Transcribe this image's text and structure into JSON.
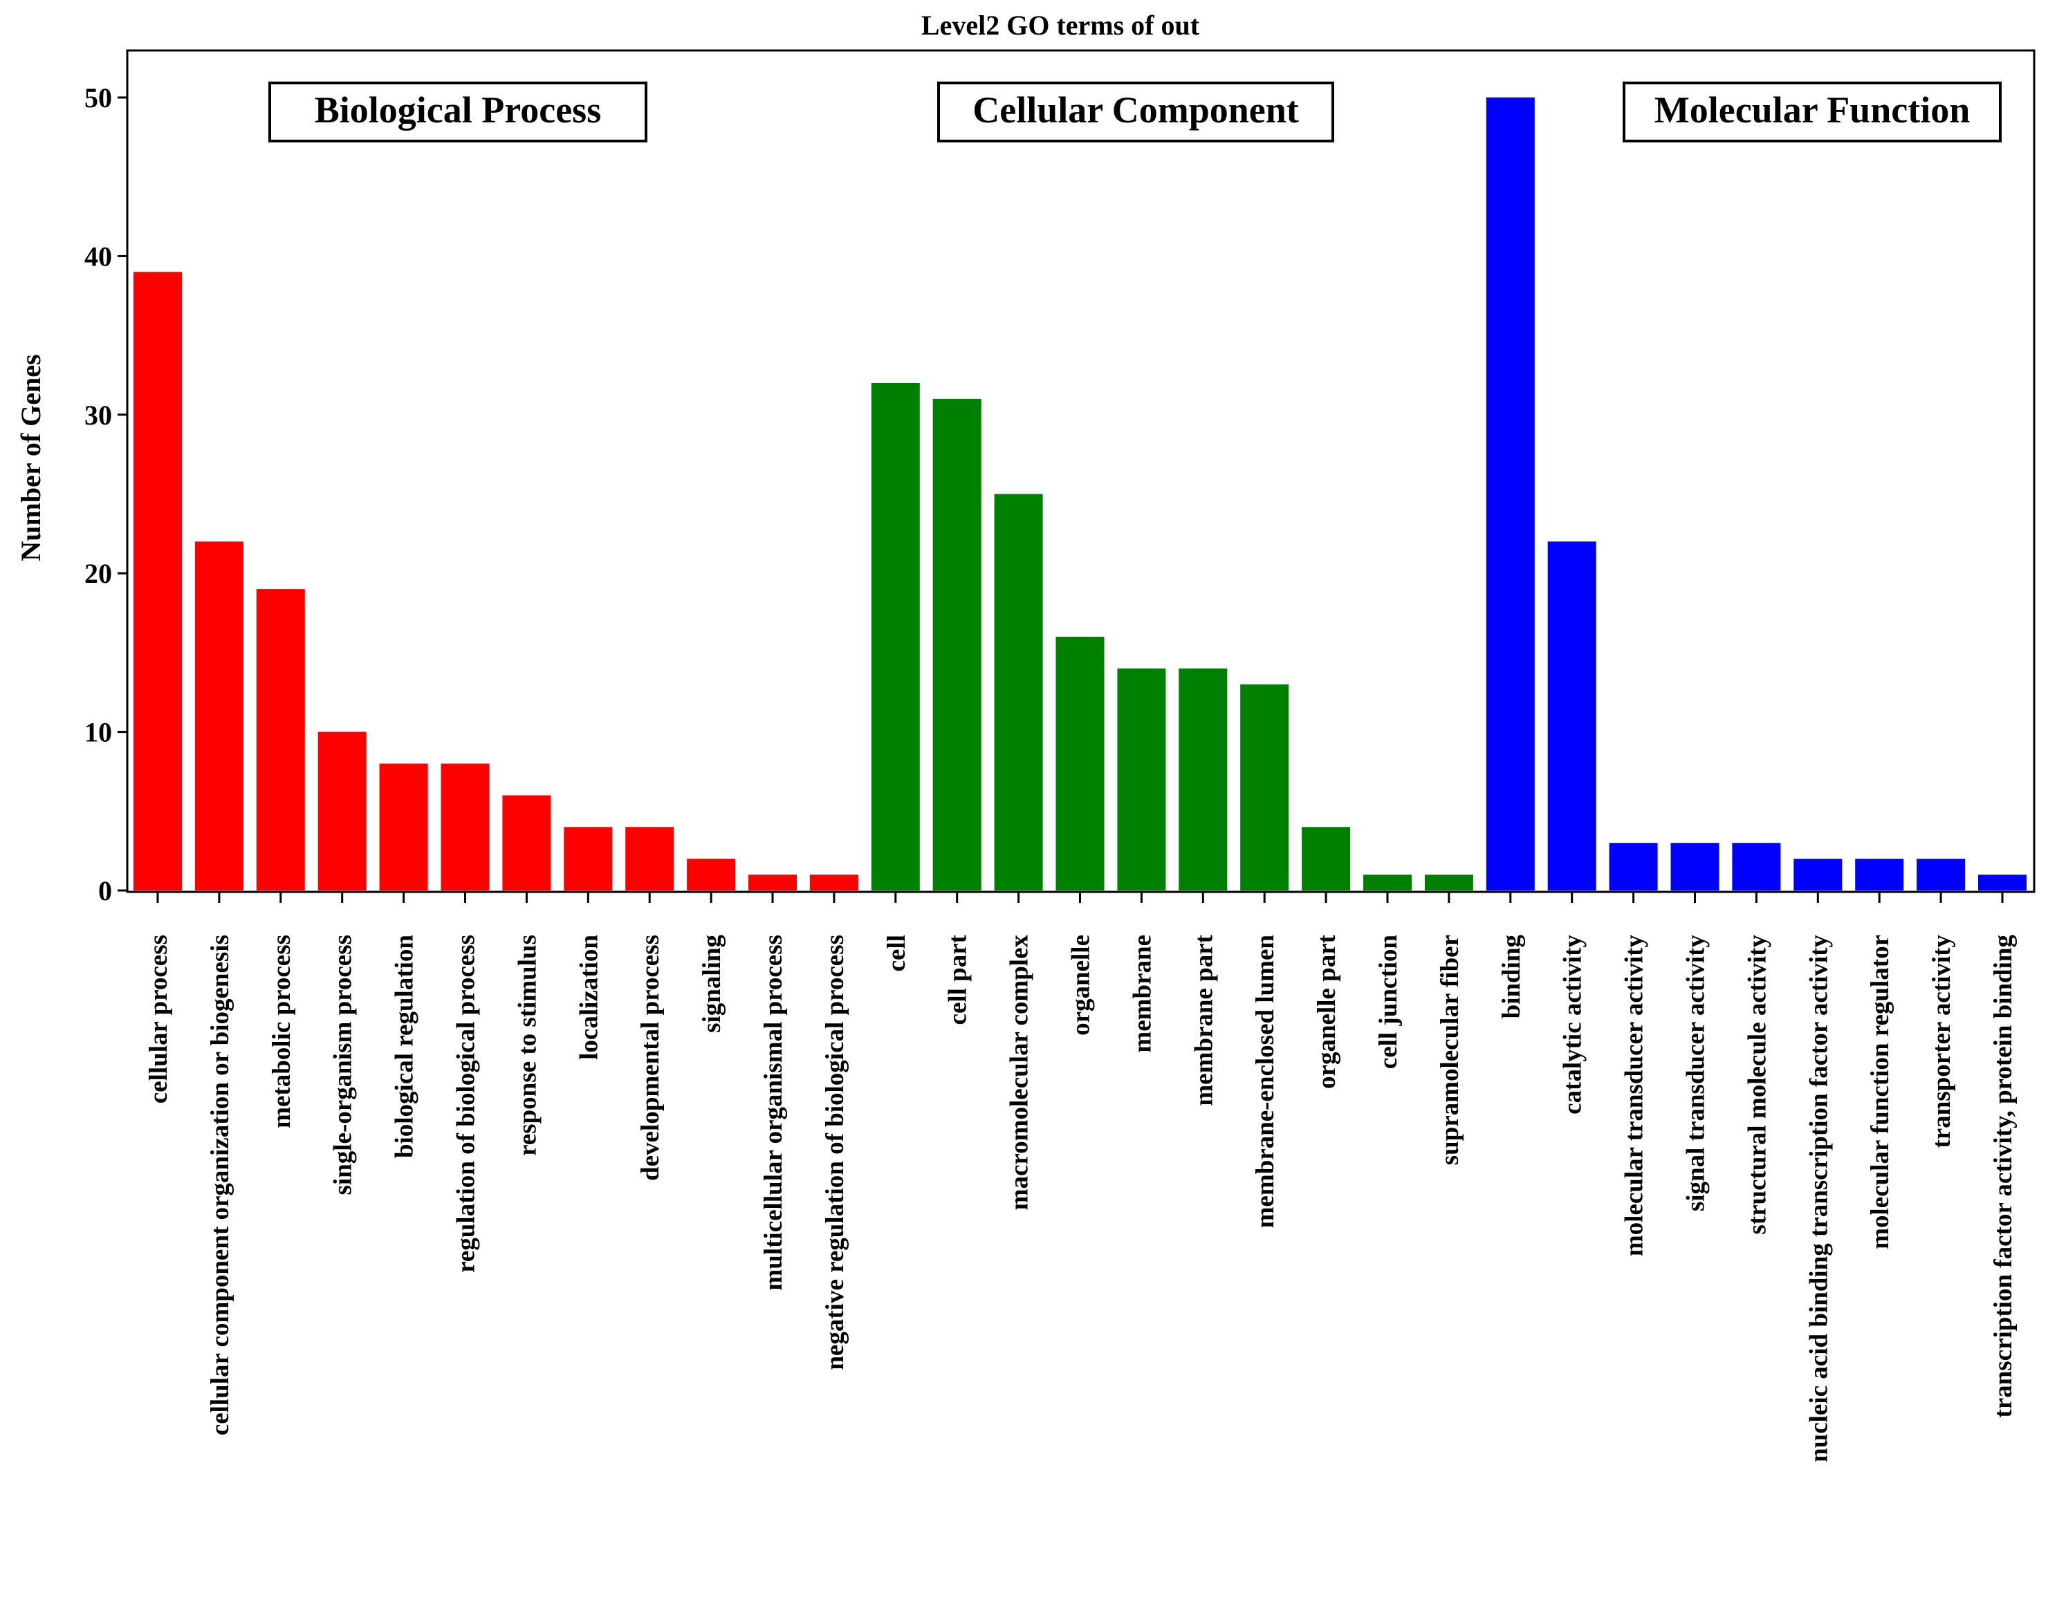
{
  "chart_data": {
    "type": "bar",
    "title": "Level2 GO terms of out",
    "xlabel": "",
    "ylabel": "Number of Genes",
    "ylim": [
      0,
      52.5
    ],
    "yticks": [
      0,
      10,
      20,
      30,
      40,
      50
    ],
    "grid": false,
    "legend": "none",
    "groups": [
      {
        "name": "Biological Process",
        "color": "#ff0000"
      },
      {
        "name": "Cellular Component",
        "color": "#008000"
      },
      {
        "name": "Molecular Function",
        "color": "#0000ff"
      }
    ],
    "categories": [
      "cellular process",
      "cellular component organization or biogenesis",
      "metabolic process",
      "single-organism process",
      "biological regulation",
      "regulation of biological process",
      "response to stimulus",
      "localization",
      "developmental process",
      "signaling",
      "multicellular organismal process",
      "negative regulation of biological process",
      "cell",
      "cell part",
      "macromolecular complex",
      "organelle",
      "membrane",
      "membrane part",
      "membrane-enclosed lumen",
      "organelle part",
      "cell junction",
      "supramolecular fiber",
      "binding",
      "catalytic activity",
      "molecular transducer activity",
      "signal transducer activity",
      "structural molecule activity",
      "nucleic acid binding transcription factor activity",
      "molecular function regulator",
      "transporter activity",
      "transcription factor activity, protein binding"
    ],
    "values": [
      39,
      22,
      19,
      10,
      8,
      8,
      6,
      4,
      4,
      2,
      1,
      1,
      32,
      31,
      25,
      16,
      14,
      14,
      13,
      4,
      1,
      1,
      50,
      22,
      3,
      3,
      3,
      2,
      2,
      2,
      1
    ],
    "group_index": [
      0,
      0,
      0,
      0,
      0,
      0,
      0,
      0,
      0,
      0,
      0,
      0,
      1,
      1,
      1,
      1,
      1,
      1,
      1,
      1,
      1,
      1,
      2,
      2,
      2,
      2,
      2,
      2,
      2,
      2,
      2
    ]
  }
}
